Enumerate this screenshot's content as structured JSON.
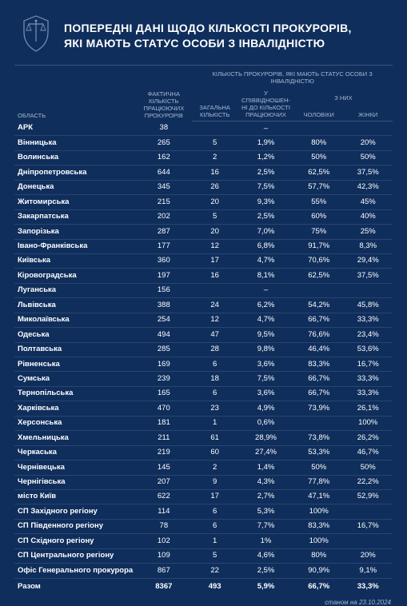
{
  "title_line1": "ПОПЕРЕДНІ ДАНІ ЩОДО КІЛЬКОСТІ ПРОКУРОРІВ,",
  "title_line2": "ЯКІ МАЮТЬ СТАТУС ОСОБИ З ІНВАЛІДНІСТЮ",
  "footer": "станом на 23.10.2024",
  "headers": {
    "region": "ОБЛАСТЬ",
    "actual": "ФАКТИЧНА КІЛЬКІСТЬ ПРАЦЮЮЧИХ ПРОКУРОРІВ",
    "disabled_group": "КІЛЬКІСТЬ ПРОКУРОРІВ, ЯКІ МАЮТЬ СТАТУС ОСОБИ З ІНВАЛІДНІСТЮ",
    "total_cnt": "ЗАГАЛЬНА КІЛЬКІСТЬ",
    "ratio": "У СПІВВІДНОШЕН-НІ ДО КІЛЬКОСТІ ПРАЦЮЮЧИХ",
    "gender_group": "З НИХ",
    "men": "ЧОЛОВІКИ",
    "women": "ЖІНКИ"
  },
  "rows": [
    {
      "region": "АРК",
      "actual": "38",
      "total": "",
      "ratio": "–",
      "men": "",
      "women": ""
    },
    {
      "region": "Вінницька",
      "actual": "265",
      "total": "5",
      "ratio": "1,9%",
      "men": "80%",
      "women": "20%"
    },
    {
      "region": "Волинська",
      "actual": "162",
      "total": "2",
      "ratio": "1,2%",
      "men": "50%",
      "women": "50%"
    },
    {
      "region": "Дніпропетровська",
      "actual": "644",
      "total": "16",
      "ratio": "2,5%",
      "men": "62,5%",
      "women": "37,5%"
    },
    {
      "region": "Донецька",
      "actual": "345",
      "total": "26",
      "ratio": "7,5%",
      "men": "57,7%",
      "women": "42,3%"
    },
    {
      "region": "Житомирська",
      "actual": "215",
      "total": "20",
      "ratio": "9,3%",
      "men": "55%",
      "women": "45%"
    },
    {
      "region": "Закарпатська",
      "actual": "202",
      "total": "5",
      "ratio": "2,5%",
      "men": "60%",
      "women": "40%"
    },
    {
      "region": "Запорізька",
      "actual": "287",
      "total": "20",
      "ratio": "7,0%",
      "men": "75%",
      "women": "25%"
    },
    {
      "region": "Івано-Франківська",
      "actual": "177",
      "total": "12",
      "ratio": "6,8%",
      "men": "91,7%",
      "women": "8,3%"
    },
    {
      "region": "Київська",
      "actual": "360",
      "total": "17",
      "ratio": "4,7%",
      "men": "70,6%",
      "women": "29,4%"
    },
    {
      "region": "Кіровоградська",
      "actual": "197",
      "total": "16",
      "ratio": "8,1%",
      "men": "62,5%",
      "women": "37,5%"
    },
    {
      "region": "Луганська",
      "actual": "156",
      "total": "",
      "ratio": "–",
      "men": "",
      "women": ""
    },
    {
      "region": "Львівська",
      "actual": "388",
      "total": "24",
      "ratio": "6,2%",
      "men": "54,2%",
      "women": "45,8%"
    },
    {
      "region": "Миколаївська",
      "actual": "254",
      "total": "12",
      "ratio": "4,7%",
      "men": "66,7%",
      "women": "33,3%"
    },
    {
      "region": "Одеська",
      "actual": "494",
      "total": "47",
      "ratio": "9,5%",
      "men": "76,6%",
      "women": "23,4%"
    },
    {
      "region": "Полтавська",
      "actual": "285",
      "total": "28",
      "ratio": "9,8%",
      "men": "46,4%",
      "women": "53,6%"
    },
    {
      "region": "Рівненська",
      "actual": "169",
      "total": "6",
      "ratio": "3,6%",
      "men": "83,3%",
      "women": "16,7%"
    },
    {
      "region": "Сумська",
      "actual": "239",
      "total": "18",
      "ratio": "7,5%",
      "men": "66,7%",
      "women": "33,3%"
    },
    {
      "region": "Тернопільська",
      "actual": "165",
      "total": "6",
      "ratio": "3,6%",
      "men": "66,7%",
      "women": "33,3%"
    },
    {
      "region": "Харківська",
      "actual": "470",
      "total": "23",
      "ratio": "4,9%",
      "men": "73,9%",
      "women": "26,1%"
    },
    {
      "region": "Херсонська",
      "actual": "181",
      "total": "1",
      "ratio": "0,6%",
      "men": "",
      "women": "100%"
    },
    {
      "region": "Хмельницька",
      "actual": "211",
      "total": "61",
      "ratio": "28,9%",
      "men": "73,8%",
      "women": "26,2%"
    },
    {
      "region": "Черкаська",
      "actual": "219",
      "total": "60",
      "ratio": "27,4%",
      "men": "53,3%",
      "women": "46,7%"
    },
    {
      "region": "Чернівецька",
      "actual": "145",
      "total": "2",
      "ratio": "1,4%",
      "men": "50%",
      "women": "50%"
    },
    {
      "region": "Чернігівська",
      "actual": "207",
      "total": "9",
      "ratio": "4,3%",
      "men": "77,8%",
      "women": "22,2%"
    },
    {
      "region": "місто Київ",
      "actual": "622",
      "total": "17",
      "ratio": "2,7%",
      "men": "47,1%",
      "women": "52,9%"
    },
    {
      "region": "СП Західного регіону",
      "actual": "114",
      "total": "6",
      "ratio": "5,3%",
      "men": "100%",
      "women": ""
    },
    {
      "region": "СП Південного регіону",
      "actual": "78",
      "total": "6",
      "ratio": "7,7%",
      "men": "83,3%",
      "women": "16,7%"
    },
    {
      "region": "СП Східного регіону",
      "actual": "102",
      "total": "1",
      "ratio": "1%",
      "men": "100%",
      "women": ""
    },
    {
      "region": "СП Центрального регіону",
      "actual": "109",
      "total": "5",
      "ratio": "4,6%",
      "men": "80%",
      "women": "20%"
    },
    {
      "region": "Офіс Генерального прокурора",
      "actual": "867",
      "total": "22",
      "ratio": "2,5%",
      "men": "90,9%",
      "women": "9,1%"
    }
  ],
  "total_row": {
    "region": "Разом",
    "actual": "8367",
    "total": "493",
    "ratio": "5,9%",
    "men": "66,7%",
    "women": "33,3%"
  },
  "colors": {
    "background": "#0f2e5c",
    "text": "#ffffff",
    "muted": "#a8b8d0",
    "border": "#2a4470",
    "header_border": "#3a5580"
  },
  "column_widths_pct": [
    32,
    15,
    12,
    15,
    13,
    13
  ]
}
